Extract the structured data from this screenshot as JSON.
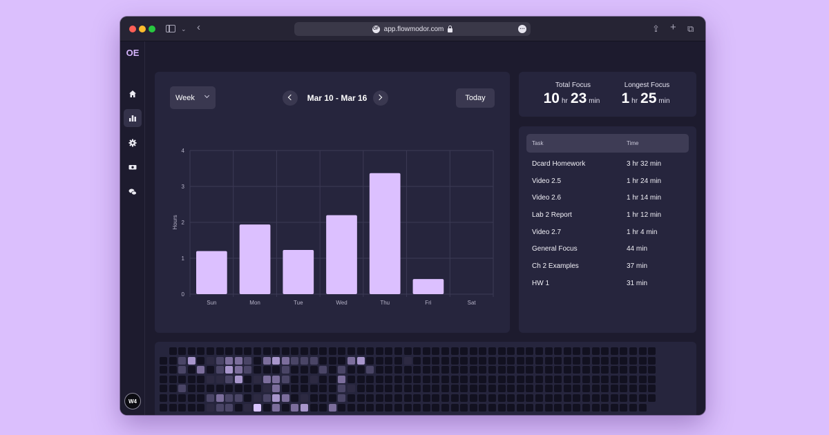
{
  "browser": {
    "url": "app.flowmodor.com",
    "site_logo": "OF"
  },
  "nav": {
    "logo": "OE",
    "items": [
      {
        "name": "home",
        "icon": "home-icon"
      },
      {
        "name": "stats",
        "icon": "bar-chart-icon",
        "active": true
      },
      {
        "name": "settings",
        "icon": "gear-icon"
      },
      {
        "name": "billing",
        "icon": "money-icon"
      },
      {
        "name": "feedback",
        "icon": "chat-icon"
      }
    ],
    "avatar_text": "W4"
  },
  "chart_panel": {
    "period_select": "Week",
    "date_range": "Mar 10 - Mar 16",
    "today_label": "Today"
  },
  "chart_data": {
    "type": "bar",
    "categories": [
      "Sun",
      "Mon",
      "Tue",
      "Wed",
      "Thu",
      "Fri",
      "Sat"
    ],
    "values": [
      1.2,
      1.94,
      1.23,
      2.2,
      3.37,
      0.42,
      0
    ],
    "title": "",
    "xlabel": "",
    "ylabel": "Hours",
    "ylim": [
      0,
      4
    ],
    "yticks": [
      0,
      1,
      2,
      3,
      4
    ],
    "grid": true,
    "bar_color": "#dcc0ff"
  },
  "summary": {
    "total": {
      "label": "Total Focus",
      "hours": "10",
      "hr_unit": "hr",
      "minutes": "23",
      "min_unit": "min"
    },
    "longest": {
      "label": "Longest Focus",
      "hours": "1",
      "hr_unit": "hr",
      "minutes": "25",
      "min_unit": "min"
    }
  },
  "tasks": {
    "headers": {
      "task": "Task",
      "time": "Time"
    },
    "rows": [
      {
        "task": "Dcard Homework",
        "time": "3 hr 32 min"
      },
      {
        "task": "Video 2.5",
        "time": "1 hr 24 min"
      },
      {
        "task": "Video 2.6",
        "time": "1 hr 14 min"
      },
      {
        "task": "Lab 2 Report",
        "time": "1 hr 12 min"
      },
      {
        "task": "Video 2.7",
        "time": "1 hr 4 min"
      },
      {
        "task": "General Focus",
        "time": "44 min"
      },
      {
        "task": "Ch 2 Examples",
        "time": "37 min"
      },
      {
        "task": "HW 1",
        "time": "31 min"
      }
    ]
  },
  "heatmap": {
    "colors": [
      "#121120",
      "#2d2a42",
      "#4a4566",
      "#7c6e9c",
      "#a896cc",
      "#d9c5ff"
    ],
    "start_offset": 1,
    "weeks": [
      [
        1,
        0,
        0,
        0,
        0,
        0,
        0
      ],
      [
        0,
        0,
        0,
        0,
        0,
        0,
        0
      ],
      [
        0,
        2,
        2,
        0,
        2,
        0,
        0
      ],
      [
        0,
        4,
        0,
        0,
        0,
        0,
        0
      ],
      [
        0,
        0,
        3,
        0,
        0,
        0,
        0
      ],
      [
        0,
        1,
        0,
        1,
        0,
        2,
        1
      ],
      [
        0,
        2,
        2,
        1,
        0,
        3,
        2
      ],
      [
        0,
        3,
        4,
        2,
        0,
        2,
        2
      ],
      [
        0,
        3,
        3,
        4,
        0,
        2,
        0
      ],
      [
        0,
        2,
        2,
        0,
        0,
        0,
        1
      ],
      [
        0,
        0,
        0,
        1,
        0,
        1,
        5
      ],
      [
        0,
        3,
        0,
        3,
        1,
        2,
        0
      ],
      [
        0,
        4,
        0,
        3,
        3,
        4,
        3
      ],
      [
        0,
        3,
        2,
        2,
        0,
        3,
        0
      ],
      [
        0,
        2,
        0,
        0,
        0,
        0,
        3
      ],
      [
        0,
        2,
        0,
        0,
        0,
        1,
        4
      ],
      [
        0,
        2,
        0,
        1,
        0,
        0,
        0
      ],
      [
        0,
        0,
        2,
        0,
        0,
        0,
        0
      ],
      [
        0,
        0,
        0,
        0,
        0,
        0,
        3
      ],
      [
        0,
        0,
        2,
        3,
        2,
        2,
        0
      ],
      [
        0,
        3,
        0,
        0,
        1,
        0,
        0
      ],
      [
        0,
        4,
        0,
        0,
        0,
        0,
        0
      ],
      [
        0,
        0,
        2,
        0,
        0,
        0,
        0
      ],
      [
        0,
        0,
        0,
        0,
        0,
        0,
        0
      ],
      [
        0,
        0,
        0,
        0,
        0,
        0,
        0
      ],
      [
        0,
        0,
        0,
        0,
        0,
        0,
        0
      ],
      [
        0,
        1,
        0,
        0,
        0,
        0,
        0
      ],
      [
        0,
        0,
        0,
        0,
        0,
        0,
        0
      ],
      [
        0,
        0,
        0,
        0,
        0,
        0,
        0
      ],
      [
        0,
        0,
        0,
        0,
        0,
        0,
        0
      ],
      [
        0,
        0,
        0,
        0,
        0,
        0,
        0
      ],
      [
        0,
        0,
        0,
        0,
        0,
        0,
        0
      ],
      [
        0,
        0,
        0,
        0,
        0,
        0,
        0
      ],
      [
        0,
        0,
        0,
        0,
        0,
        0,
        0
      ],
      [
        0,
        0,
        0,
        0,
        0,
        0,
        0
      ],
      [
        0,
        0,
        0,
        0,
        0,
        0,
        0
      ],
      [
        0,
        0,
        0,
        0,
        0,
        0,
        0
      ],
      [
        0,
        0,
        0,
        0,
        0,
        0,
        0
      ],
      [
        0,
        0,
        0,
        0,
        0,
        0,
        0
      ],
      [
        0,
        0,
        0,
        0,
        0,
        0,
        0
      ],
      [
        0,
        0,
        0,
        0,
        0,
        0,
        0
      ],
      [
        0,
        0,
        0,
        0,
        0,
        0,
        0
      ],
      [
        0,
        0,
        0,
        0,
        0,
        0,
        0
      ],
      [
        0,
        0,
        0,
        0,
        0,
        0,
        0
      ],
      [
        0,
        0,
        0,
        0,
        0,
        0,
        0
      ],
      [
        0,
        0,
        0,
        0,
        0,
        0,
        0
      ],
      [
        0,
        0,
        0,
        0,
        0,
        0,
        0
      ],
      [
        0,
        0,
        0,
        0,
        0,
        0,
        0
      ],
      [
        0,
        0,
        0,
        0,
        0,
        0,
        0
      ],
      [
        0,
        0,
        0,
        0,
        0,
        0,
        0
      ],
      [
        0,
        0,
        0,
        0,
        0,
        0,
        0
      ],
      [
        0,
        0,
        0,
        0,
        0,
        0,
        0
      ],
      [
        0,
        0,
        0,
        0,
        0,
        0,
        0
      ]
    ]
  }
}
